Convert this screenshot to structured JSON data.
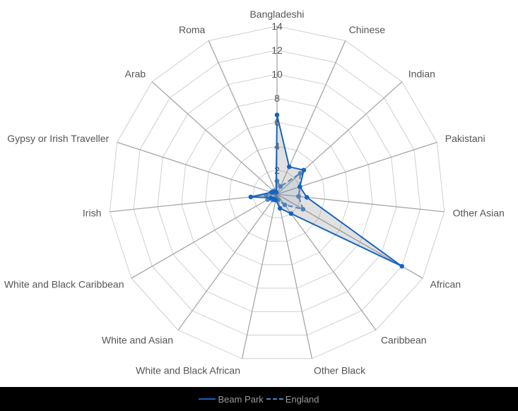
{
  "chart_data": {
    "type": "radar",
    "categories": [
      "Bangladeshi",
      "Chinese",
      "Indian",
      "Pakistani",
      "Other Asian",
      "African",
      "Caribbean",
      "Other Black",
      "White and Black African",
      "White and Asian",
      "White and Black Caribbean",
      "Irish",
      "Gypsy or Irish Traveller",
      "Arab",
      "Roma"
    ],
    "radial_ticks": [
      2,
      4,
      6,
      8,
      10,
      12,
      14
    ],
    "radial_range": [
      0,
      14
    ],
    "grid": true,
    "legend_position": "bottom",
    "series": [
      {
        "name": "Beam Park",
        "color": "#1565c0",
        "line_style": "solid",
        "values": [
          6.6,
          2.5,
          3.0,
          2.0,
          2.5,
          12.0,
          2.0,
          1.2,
          0.5,
          0.5,
          0.6,
          2.2,
          0.5,
          0.3,
          0.2
        ]
      },
      {
        "name": "England",
        "color": "#4a86c8",
        "line_style": "dashed",
        "values": [
          1.1,
          0.7,
          2.6,
          2.0,
          1.8,
          2.5,
          1.1,
          0.5,
          0.3,
          0.6,
          0.9,
          0.9,
          0.1,
          0.4,
          0.1
        ]
      }
    ]
  }
}
